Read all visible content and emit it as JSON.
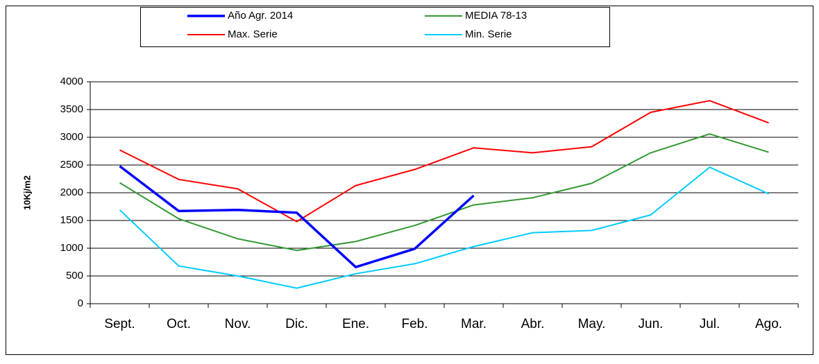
{
  "chart_data": {
    "type": "line",
    "y_label": "10Kj/m2",
    "categories": [
      "Sept.",
      "Oct.",
      "Nov.",
      "Dic.",
      "Ene.",
      "Feb.",
      "Mar.",
      "Abr.",
      "May.",
      "Jun.",
      "Jul.",
      "Ago."
    ],
    "series": [
      {
        "name": "Año Agr. 2014",
        "color": "#0000ff",
        "values": [
          2480,
          1670,
          1690,
          1640,
          660,
          990,
          1950,
          null,
          null,
          null,
          null,
          null
        ]
      },
      {
        "name": "MEDIA 78-13",
        "color": "#339933",
        "values": [
          2180,
          1530,
          1170,
          960,
          1120,
          1410,
          1780,
          1910,
          2170,
          2720,
          3060,
          2730
        ]
      },
      {
        "name": "Max. Serie",
        "color": "#ff0000",
        "values": [
          2770,
          2240,
          2070,
          1480,
          2130,
          2420,
          2810,
          2720,
          2830,
          3450,
          3660,
          3260
        ]
      },
      {
        "name": "Min. Serie",
        "color": "#00ccff",
        "values": [
          1690,
          680,
          500,
          280,
          540,
          720,
          1030,
          1280,
          1320,
          1600,
          2460,
          1980
        ]
      }
    ],
    "ylim": [
      0,
      4000
    ],
    "yticks": [
      0,
      500,
      1000,
      1500,
      2000,
      2500,
      3000,
      3500,
      4000
    ],
    "grid": true,
    "legend": "top"
  }
}
